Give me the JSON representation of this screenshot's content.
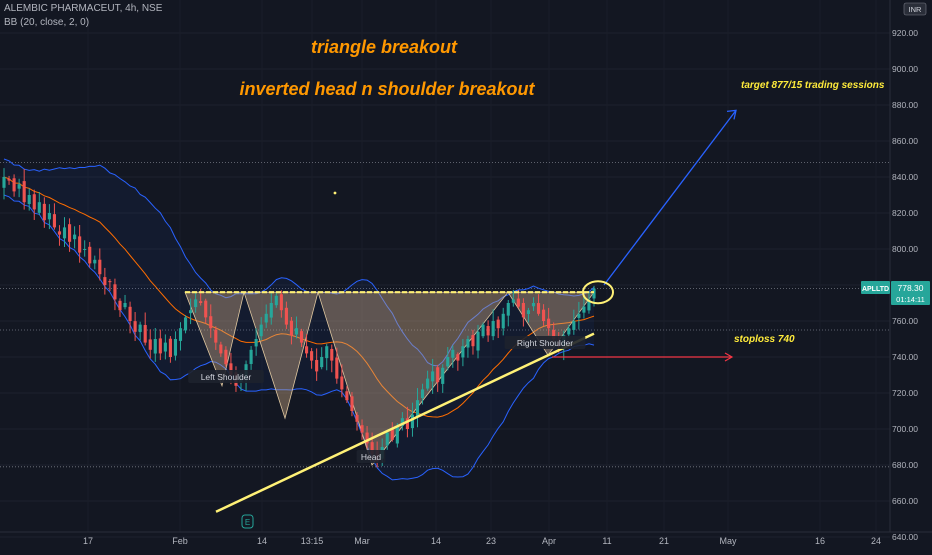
{
  "header": {
    "symbol_line": "ALEMBIC PHARMACEUT, 4h, NSE",
    "indicator_line": "BB (20, close, 2, 0)"
  },
  "currency_badge": "INR",
  "price_tag": {
    "symbol": "APLLTD",
    "price": "778.30",
    "countdown": "01:14:11"
  },
  "annotations": {
    "title1": "triangle breakout",
    "title2": "inverted head n shoulder breakout",
    "target": "target 877/15 trading sessions",
    "stoploss": "stoploss 740",
    "left_shoulder": "Left Shoulder",
    "head": "Head",
    "right_shoulder": "Right Shoulder"
  },
  "colors": {
    "background": "#131722",
    "up_candle": "#26a69a",
    "down_candle": "#ef5350",
    "bb_band": "#2962ff",
    "bb_basis": "#ff6d00",
    "pattern_fill": "#c8a882",
    "trendline": "#fff176",
    "annotation_orange": "#ff9800",
    "target_arrow": "#2962ff",
    "stoploss_arrow": "#f23645",
    "price_tag_bg": "#26a69a"
  },
  "chart_data": {
    "type": "candlestick",
    "symbol": "ALEMBIC PHARMACEUT",
    "timeframe": "4h",
    "exchange": "NSE",
    "y_ticks": [
      640,
      660,
      680,
      700,
      720,
      740,
      760,
      780,
      800,
      820,
      840,
      860,
      880,
      900,
      920
    ],
    "y_tick_labels": [
      "640.00",
      "660.00",
      "680.00",
      "700.00",
      "720.00",
      "740.00",
      "760.00",
      "780.00",
      "800.00",
      "820.00",
      "840.00",
      "860.00",
      "880.00",
      "900.00",
      "920.00"
    ],
    "x_tick_labels": [
      "17",
      "Feb",
      "14",
      "13:15",
      "Mar",
      "14",
      "23",
      "Apr",
      "11",
      "21",
      "May",
      "16",
      "24"
    ],
    "last_price": 778.3,
    "reference_levels": [
      848,
      778,
      755,
      679
    ],
    "close_series": [
      840,
      838,
      832,
      836,
      826,
      830,
      822,
      826,
      816,
      820,
      812,
      808,
      812,
      804,
      808,
      798,
      800,
      792,
      794,
      786,
      780,
      782,
      772,
      766,
      770,
      760,
      754,
      758,
      748,
      744,
      750,
      742,
      748,
      740,
      750,
      756,
      762,
      766,
      772,
      770,
      762,
      756,
      748,
      742,
      736,
      730,
      724,
      728,
      736,
      744,
      750,
      758,
      764,
      770,
      774,
      766,
      758,
      752,
      756,
      748,
      742,
      738,
      732,
      740,
      746,
      738,
      728,
      722,
      716,
      710,
      704,
      698,
      692,
      686,
      682,
      690,
      698,
      694,
      702,
      706,
      700,
      708,
      716,
      722,
      728,
      732,
      726,
      734,
      740,
      744,
      738,
      746,
      750,
      746,
      754,
      758,
      752,
      760,
      756,
      764,
      770,
      772,
      768,
      762,
      766,
      770,
      764,
      760,
      756,
      750,
      746,
      752,
      756,
      760,
      764,
      768,
      772,
      778
    ],
    "indicator": "Bollinger Bands (20, close, 2, 0)",
    "trendlines": [
      {
        "name": "neckline",
        "from": [
          "Feb",
          776
        ],
        "to": [
          "Apr 11",
          776
        ]
      },
      {
        "name": "ascending-support",
        "from": [
          "Feb 7",
          654
        ],
        "to": [
          "Apr 9",
          753
        ]
      }
    ],
    "targets": {
      "target_price": 877,
      "target_sessions": 15,
      "stoploss": 740
    }
  }
}
